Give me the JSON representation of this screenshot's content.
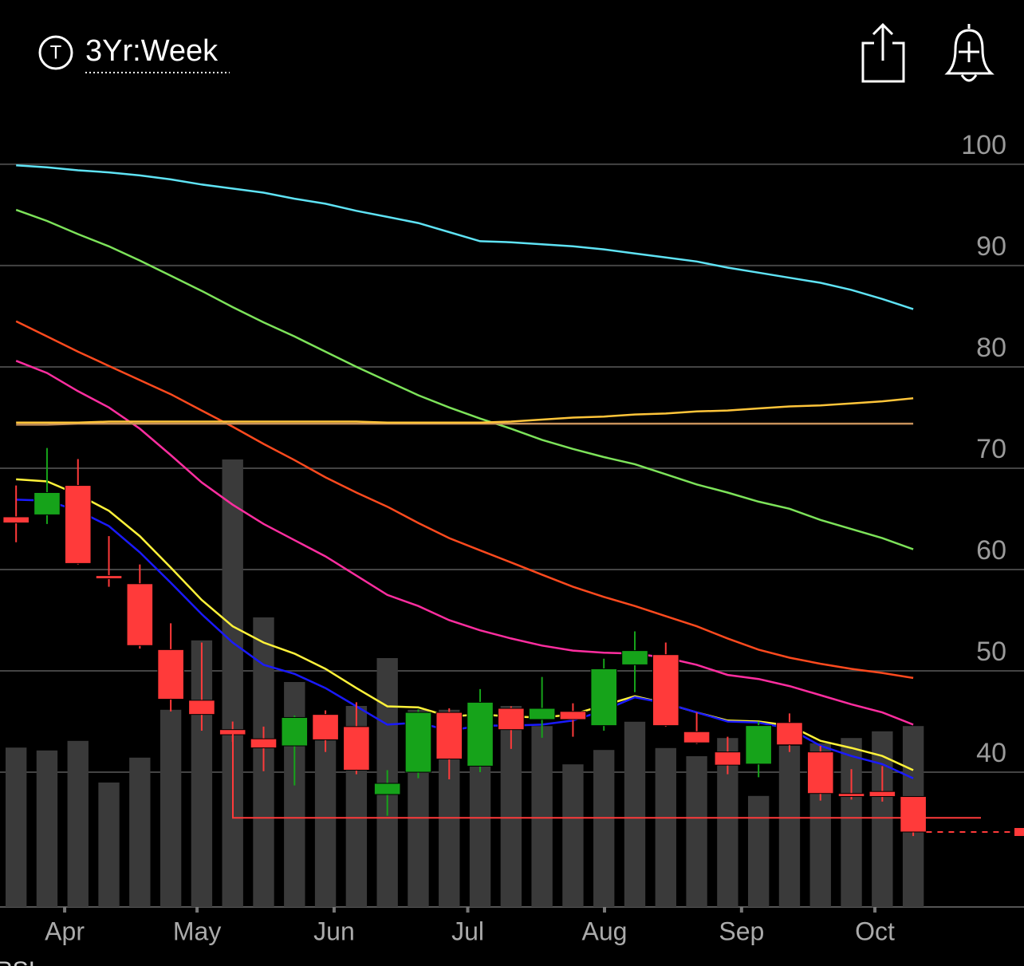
{
  "header": {
    "timeframe": "3Yr:Week",
    "icon_letter": "T"
  },
  "chart_data": {
    "type": "candlestick",
    "indicator_label": "RSI",
    "categories": [
      null,
      null,
      null,
      null,
      null,
      null,
      null,
      null,
      null,
      null,
      null,
      null,
      null,
      null,
      null,
      null,
      null,
      null,
      null,
      null,
      null,
      null,
      null,
      null,
      null,
      null,
      null,
      null,
      null,
      null
    ],
    "xlim": [
      -0.52,
      32.58
    ],
    "xticks": [
      {
        "value": 1.57,
        "label": "Apr"
      },
      {
        "value": 5.85,
        "label": "May"
      },
      {
        "value": 10.28,
        "label": "Jun"
      },
      {
        "value": 14.6,
        "label": "Jul"
      },
      {
        "value": 19.02,
        "label": "Aug"
      },
      {
        "value": 23.45,
        "label": "Sep"
      },
      {
        "value": 27.76,
        "label": "Oct"
      }
    ],
    "ylim": [
      26.7,
      104.4
    ],
    "yticks": [
      40,
      50,
      60,
      70,
      80,
      90,
      100
    ],
    "y2lim": [
      0,
      164.5
    ],
    "grid": true,
    "up_color": "#16a31a",
    "down_color": "#ff3a3a",
    "volume_color": "#3a3a3a",
    "support_level": 35.5,
    "support_color": "#ff3a3a",
    "open": [
      65.2,
      65.4,
      68.3,
      59.4,
      58.6,
      52.1,
      47.1,
      44.2,
      43.3,
      42.6,
      45.7,
      44.5,
      37.8,
      40.0,
      45.9,
      40.6,
      46.3,
      45.2,
      46.0,
      44.6,
      50.6,
      51.6,
      44.0,
      42.0,
      40.8,
      44.9,
      42.0,
      37.9,
      38.1,
      37.6
    ],
    "high": [
      68.3,
      72.0,
      70.9,
      63.3,
      60.5,
      54.7,
      52.8,
      45.0,
      44.5,
      45.6,
      46.1,
      46.9,
      40.2,
      46.2,
      46.3,
      48.2,
      46.5,
      49.4,
      46.8,
      51.2,
      53.9,
      52.8,
      45.9,
      43.5,
      45.0,
      45.8,
      42.6,
      40.3,
      40.6,
      37.6
    ],
    "low": [
      62.7,
      64.5,
      60.5,
      58.3,
      52.2,
      46.0,
      44.1,
      43.0,
      40.1,
      38.7,
      42.0,
      39.8,
      35.7,
      39.4,
      39.3,
      40.0,
      42.3,
      43.4,
      43.5,
      44.1,
      47.9,
      44.5,
      42.8,
      39.8,
      39.5,
      42.0,
      37.2,
      37.3,
      37.1,
      33.7
    ],
    "close": [
      64.6,
      67.6,
      60.6,
      59.1,
      52.5,
      47.2,
      45.7,
      43.7,
      42.4,
      45.4,
      43.2,
      40.2,
      38.9,
      45.9,
      41.3,
      46.9,
      44.2,
      46.3,
      45.2,
      50.2,
      52.0,
      44.6,
      42.9,
      40.7,
      44.6,
      42.7,
      37.9,
      37.6,
      37.6,
      34.1
    ],
    "volume": [
      33.3,
      32.7,
      34.7,
      26.0,
      31.2,
      41.2,
      55.7,
      93.5,
      60.5,
      47.0,
      34.8,
      42.0,
      52.0,
      41.2,
      41.2,
      32.8,
      42.0,
      37.8,
      29.8,
      32.8,
      38.7,
      33.2,
      31.5,
      35.3,
      23.2,
      33.7,
      34.2,
      35.3,
      36.7,
      37.8
    ],
    "series": [
      {
        "color": "#5fe3f5",
        "values": [
          99.9,
          99.7,
          99.4,
          99.2,
          98.9,
          98.5,
          98.0,
          97.6,
          97.2,
          96.6,
          96.1,
          95.4,
          94.8,
          94.2,
          93.3,
          92.4,
          92.3,
          92.1,
          91.9,
          91.6,
          91.2,
          90.8,
          90.4,
          89.8,
          89.3,
          88.8,
          88.3,
          87.6,
          86.7,
          85.7
        ]
      },
      {
        "color": "#7de35a",
        "values": [
          95.5,
          94.4,
          93.1,
          91.9,
          90.5,
          89.0,
          87.5,
          85.9,
          84.4,
          83.0,
          81.5,
          80.0,
          78.6,
          77.2,
          76.0,
          74.9,
          73.9,
          72.8,
          71.9,
          71.1,
          70.4,
          69.4,
          68.4,
          67.6,
          66.7,
          66.0,
          64.9,
          64.0,
          63.1,
          62.0
        ]
      },
      {
        "color": "#ff4a1e",
        "values": [
          84.5,
          83.0,
          81.5,
          80.1,
          78.7,
          77.3,
          75.7,
          74.1,
          72.4,
          70.8,
          69.1,
          67.6,
          66.2,
          64.6,
          63.1,
          61.9,
          60.7,
          59.5,
          58.3,
          57.3,
          56.4,
          55.4,
          54.4,
          53.2,
          52.1,
          51.3,
          50.7,
          50.2,
          49.8,
          49.3
        ]
      },
      {
        "color": "#ff2ea0",
        "values": [
          80.6,
          79.4,
          77.6,
          76.0,
          73.9,
          71.3,
          68.6,
          66.4,
          64.5,
          62.9,
          61.3,
          59.4,
          57.5,
          56.4,
          55.0,
          54.0,
          53.2,
          52.5,
          52.0,
          51.8,
          51.7,
          51.3,
          50.6,
          49.6,
          49.2,
          48.5,
          47.6,
          46.7,
          45.9,
          44.7
        ]
      },
      {
        "color": "#c7915a",
        "values": [
          74.3,
          74.3,
          74.4,
          74.4,
          74.4,
          74.4,
          74.4,
          74.4,
          74.4,
          74.4,
          74.4,
          74.4,
          74.4,
          74.4,
          74.4,
          74.4,
          74.4,
          74.4,
          74.4,
          74.4,
          74.4,
          74.4,
          74.4,
          74.4,
          74.4,
          74.4,
          74.4,
          74.4,
          74.4,
          74.4
        ]
      },
      {
        "color": "#ffc53a",
        "values": [
          74.5,
          74.5,
          74.5,
          74.6,
          74.6,
          74.6,
          74.6,
          74.6,
          74.6,
          74.6,
          74.6,
          74.6,
          74.5,
          74.5,
          74.5,
          74.5,
          74.6,
          74.8,
          75.0,
          75.1,
          75.3,
          75.4,
          75.6,
          75.7,
          75.9,
          76.1,
          76.2,
          76.4,
          76.6,
          76.9
        ]
      },
      {
        "color": "#fff23a",
        "values": [
          68.9,
          68.7,
          67.4,
          65.8,
          63.3,
          60.2,
          57.0,
          54.4,
          52.8,
          51.7,
          50.2,
          48.3,
          46.5,
          46.4,
          45.5,
          45.7,
          45.5,
          45.4,
          45.7,
          46.6,
          47.5,
          46.8,
          45.9,
          45.1,
          45.0,
          44.6,
          43.1,
          42.4,
          41.6,
          40.2
        ]
      },
      {
        "color": "#1a1aff",
        "values": [
          66.9,
          66.8,
          65.8,
          64.3,
          61.7,
          58.7,
          55.6,
          52.8,
          50.6,
          49.7,
          48.3,
          46.5,
          44.7,
          44.9,
          44.1,
          44.6,
          44.6,
          44.7,
          45.1,
          46.1,
          47.4,
          46.8,
          45.9,
          45.0,
          44.9,
          44.3,
          42.6,
          41.6,
          40.8,
          39.4
        ]
      }
    ]
  }
}
